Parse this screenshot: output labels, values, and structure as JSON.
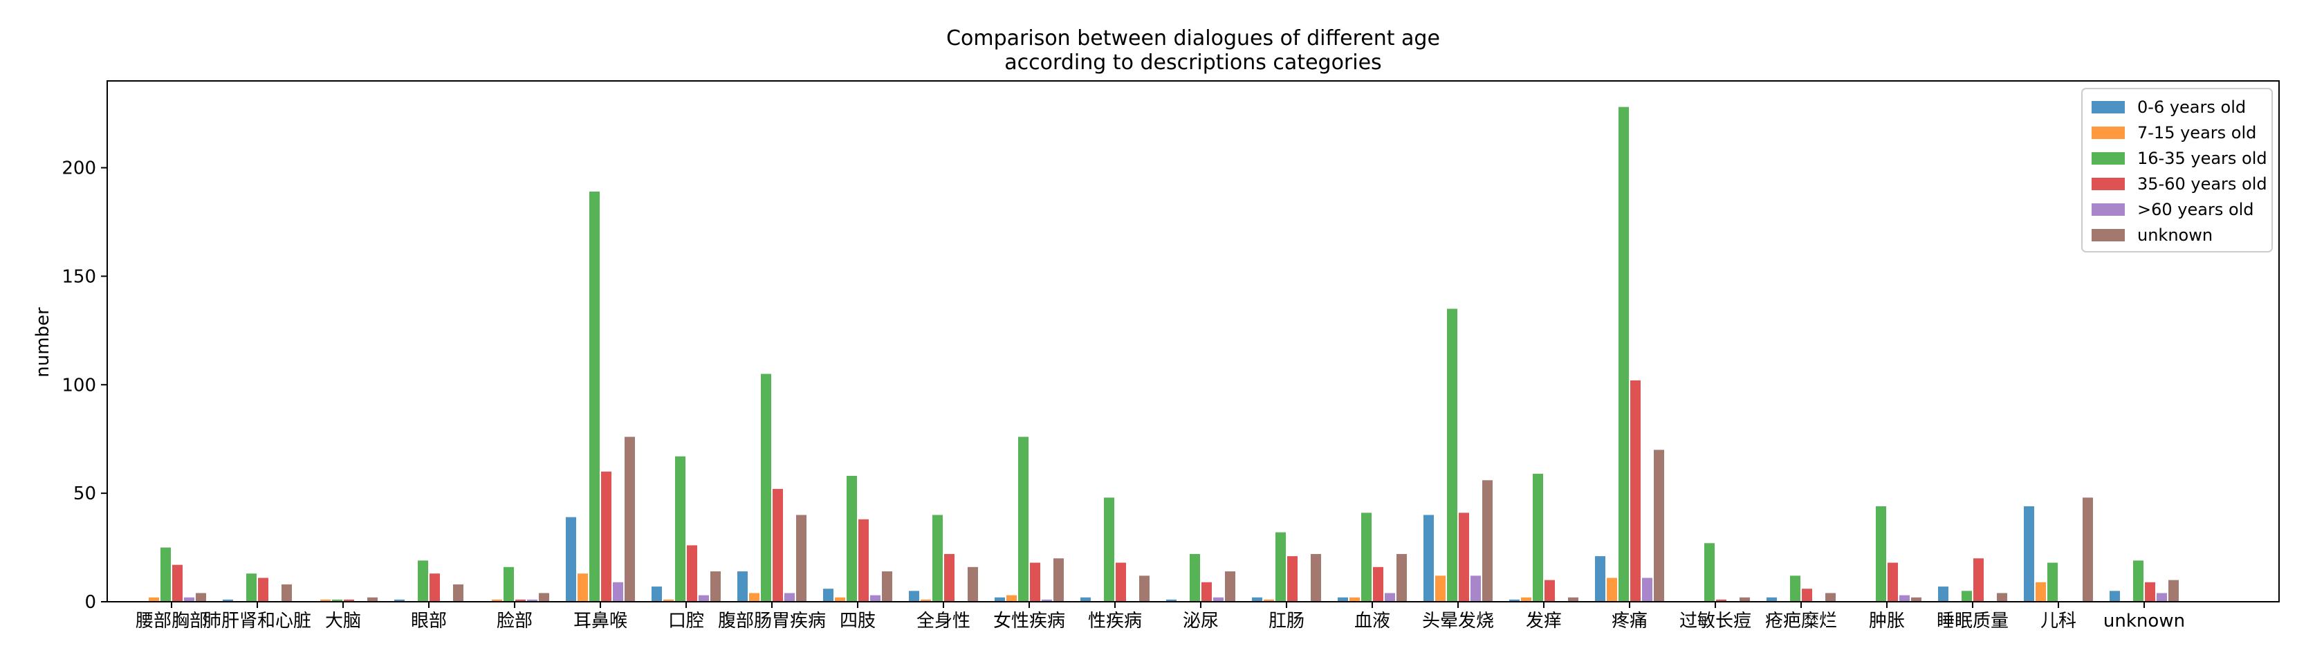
{
  "chart_data": {
    "type": "bar",
    "title": [
      "Comparison between dialogues of different age",
      "according to descriptions categories"
    ],
    "xlabel": "",
    "ylabel": "number",
    "ylim": [
      0,
      240
    ],
    "yticks": [
      0,
      50,
      100,
      150,
      200
    ],
    "grid": false,
    "legend_position": "top-right",
    "categories": [
      "腰部胸部",
      "肺肝肾和心脏",
      "大脑",
      "眼部",
      "脸部",
      "耳鼻喉",
      "口腔",
      "腹部肠胃疾病",
      "四肢",
      "全身性",
      "女性疾病",
      "性疾病",
      "泌尿",
      "肛肠",
      "血液",
      "头晕发烧",
      "发痒",
      "疼痛",
      "过敏长痘",
      "疮疤糜烂",
      "肿胀",
      "睡眠质量",
      "儿科",
      "unknown"
    ],
    "series": [
      {
        "name": "0-6 years old",
        "color": "#1f77b4",
        "values": [
          0,
          1,
          0,
          1,
          0,
          39,
          7,
          14,
          6,
          5,
          2,
          2,
          1,
          2,
          2,
          40,
          1,
          21,
          0,
          2,
          0,
          7,
          44,
          5
        ]
      },
      {
        "name": "7-15 years old",
        "color": "#ff7f0e",
        "values": [
          2,
          0,
          1,
          0,
          1,
          13,
          1,
          4,
          2,
          1,
          3,
          0,
          0,
          1,
          2,
          12,
          2,
          11,
          0,
          0,
          0,
          0,
          9,
          0
        ]
      },
      {
        "name": "16-35 years old",
        "color": "#2ca02c",
        "values": [
          25,
          13,
          1,
          19,
          16,
          189,
          67,
          105,
          58,
          40,
          76,
          48,
          22,
          32,
          41,
          135,
          59,
          228,
          27,
          12,
          44,
          5,
          18,
          19
        ]
      },
      {
        "name": "35-60 years old",
        "color": "#d62728",
        "values": [
          17,
          11,
          1,
          13,
          1,
          60,
          26,
          52,
          38,
          22,
          18,
          18,
          9,
          21,
          16,
          41,
          10,
          102,
          1,
          6,
          18,
          20,
          0,
          9
        ]
      },
      {
        "name": ">60 years old",
        "color": "#9467bd",
        "values": [
          2,
          0,
          0,
          0,
          1,
          9,
          3,
          4,
          3,
          0,
          1,
          0,
          2,
          0,
          4,
          12,
          0,
          11,
          0,
          0,
          3,
          0,
          0,
          4
        ]
      },
      {
        "name": "unknown",
        "color": "#8c564b",
        "values": [
          4,
          8,
          2,
          8,
          4,
          76,
          14,
          40,
          14,
          16,
          20,
          12,
          14,
          22,
          22,
          56,
          2,
          70,
          2,
          4,
          2,
          4,
          48,
          10
        ]
      }
    ]
  }
}
